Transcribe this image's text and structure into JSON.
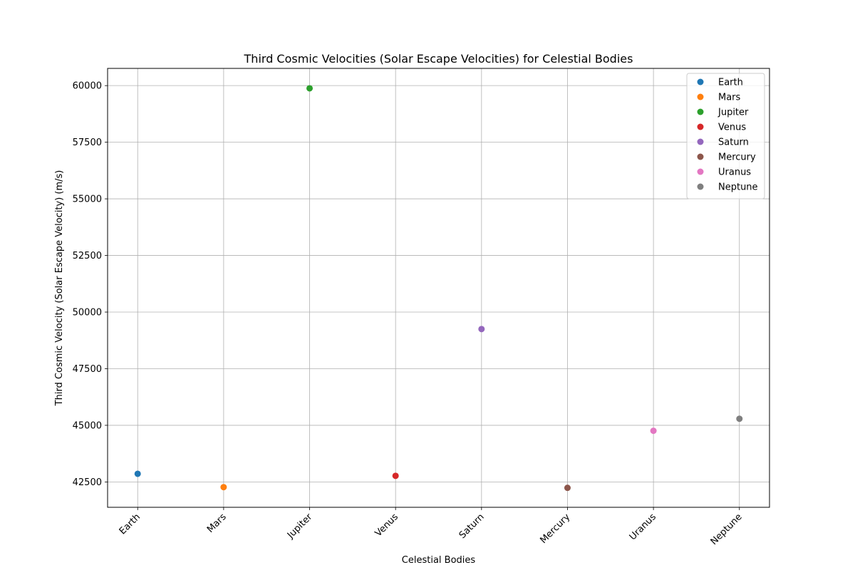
{
  "chart_data": {
    "type": "scatter",
    "title": "Third Cosmic Velocities (Solar Escape Velocities) for Celestial Bodies",
    "xlabel": "Celestial Bodies",
    "ylabel": "Third Cosmic Velocity (Solar Escape Velocity) (m/s)",
    "categories": [
      "Earth",
      "Mars",
      "Jupiter",
      "Venus",
      "Saturn",
      "Mercury",
      "Uranus",
      "Neptune"
    ],
    "series": [
      {
        "name": "Earth",
        "x": "Earth",
        "y": 42860,
        "color": "#1f77b4"
      },
      {
        "name": "Mars",
        "x": "Mars",
        "y": 42270,
        "color": "#ff7f0e"
      },
      {
        "name": "Jupiter",
        "x": "Jupiter",
        "y": 59880,
        "color": "#2ca02c"
      },
      {
        "name": "Venus",
        "x": "Venus",
        "y": 42770,
        "color": "#d62728"
      },
      {
        "name": "Saturn",
        "x": "Saturn",
        "y": 49250,
        "color": "#9467bd"
      },
      {
        "name": "Mercury",
        "x": "Mercury",
        "y": 42240,
        "color": "#8c564b"
      },
      {
        "name": "Uranus",
        "x": "Uranus",
        "y": 44760,
        "color": "#e377c2"
      },
      {
        "name": "Neptune",
        "x": "Neptune",
        "y": 45290,
        "color": "#7f7f7f"
      }
    ],
    "ylim": [
      41380,
      60760
    ],
    "yticks": [
      42500,
      45000,
      47500,
      50000,
      52500,
      55000,
      57500,
      60000
    ],
    "ytick_labels": [
      "42500",
      "45000",
      "47500",
      "50000",
      "52500",
      "55000",
      "57500",
      "60000"
    ],
    "grid": true,
    "legend_position": "top-right",
    "xtick_rotation": 45
  }
}
